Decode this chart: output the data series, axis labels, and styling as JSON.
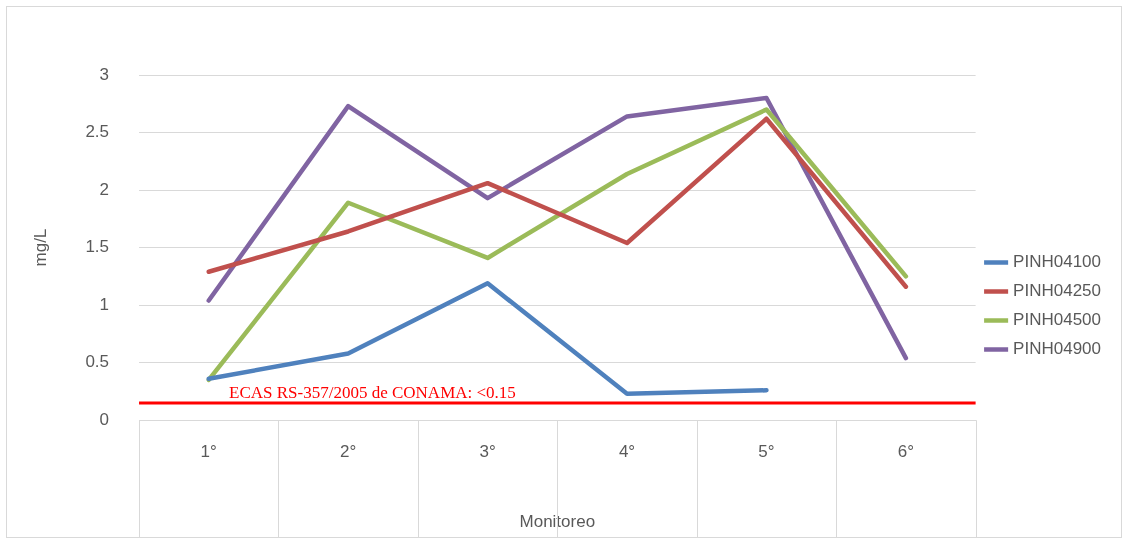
{
  "chart_data": {
    "type": "line",
    "xlabel": "Monitoreo",
    "ylabel": "mg/L",
    "categories": [
      "1°",
      "2°",
      "3°",
      "4°",
      "5°",
      "6°"
    ],
    "series": [
      {
        "name": "PINH04100",
        "color": "#4f81bd",
        "values": [
          0.36,
          0.58,
          1.19,
          0.23,
          0.26,
          null
        ]
      },
      {
        "name": "PINH04250",
        "color": "#c0504d",
        "values": [
          1.29,
          1.64,
          2.06,
          1.54,
          2.62,
          1.16
        ]
      },
      {
        "name": "PINH04500",
        "color": "#9bbb59",
        "values": [
          0.35,
          1.89,
          1.41,
          2.14,
          2.7,
          1.25
        ]
      },
      {
        "name": "PINH04900",
        "color": "#8064a2",
        "values": [
          1.04,
          2.73,
          1.93,
          2.64,
          2.8,
          0.54
        ]
      }
    ],
    "ylim": [
      0,
      3
    ],
    "yticks": [
      0,
      0.5,
      1,
      1.5,
      2,
      2.5,
      3
    ],
    "grid": "y",
    "legend": "right",
    "marker": "none",
    "line_style": "solid",
    "ref_lines": [
      {
        "axis": "y",
        "value": 0.15,
        "label": "ECAS RS-357/2005 de CONAMA: <0.15",
        "color": "#ff0000"
      }
    ]
  }
}
